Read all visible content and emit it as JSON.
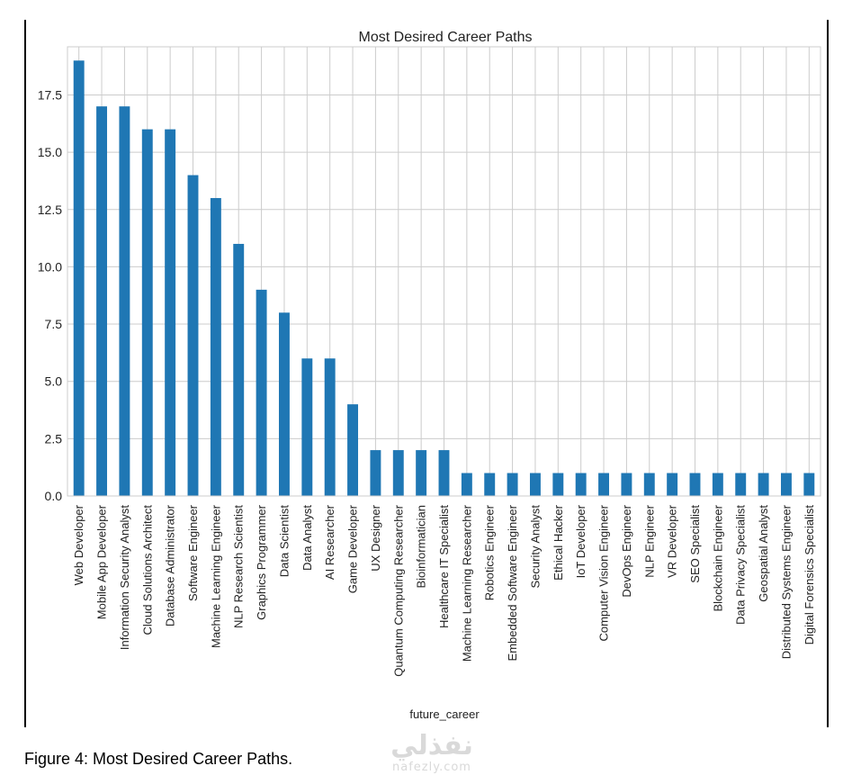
{
  "chart_data": {
    "type": "bar",
    "title": "Most Desired Career Paths",
    "xlabel": "future_career",
    "ylabel": "",
    "ylim": [
      0,
      19.6
    ],
    "yticks": [
      "0.0",
      "2.5",
      "5.0",
      "7.5",
      "10.0",
      "12.5",
      "15.0",
      "17.5"
    ],
    "grid": true,
    "legend": "none",
    "bar_color": "#1f77b4",
    "categories": [
      "Web Developer",
      "Mobile App Developer",
      "Information Security Analyst",
      "Cloud Solutions Architect",
      "Database Administrator",
      "Software Engineer",
      "Machine Learning Engineer",
      "NLP Research Scientist",
      "Graphics Programmer",
      "Data Scientist",
      "Data Analyst",
      "AI Researcher",
      "Game Developer",
      "UX Designer",
      "Quantum Computing Researcher",
      "Bioinformatician",
      "Healthcare IT Specialist",
      "Machine Learning Researcher",
      "Robotics Engineer",
      "Embedded Software Engineer",
      "Security Analyst",
      "Ethical Hacker",
      "IoT Developer",
      "Computer Vision Engineer",
      "DevOps Engineer",
      "NLP Engineer",
      "VR Developer",
      "SEO Specialist",
      "Blockchain Engineer",
      "Data Privacy Specialist",
      "Geospatial Analyst",
      "Distributed Systems Engineer",
      "Digital Forensics Specialist"
    ],
    "values": [
      19,
      17,
      17,
      16,
      16,
      14,
      13,
      11,
      9,
      8,
      6,
      6,
      4,
      2,
      2,
      2,
      2,
      1,
      1,
      1,
      1,
      1,
      1,
      1,
      1,
      1,
      1,
      1,
      1,
      1,
      1,
      1,
      1
    ]
  },
  "caption": "Figure 4: Most Desired Career Paths.",
  "watermark": {
    "logo_text": "نفذلي",
    "site": "nafezly.com"
  }
}
